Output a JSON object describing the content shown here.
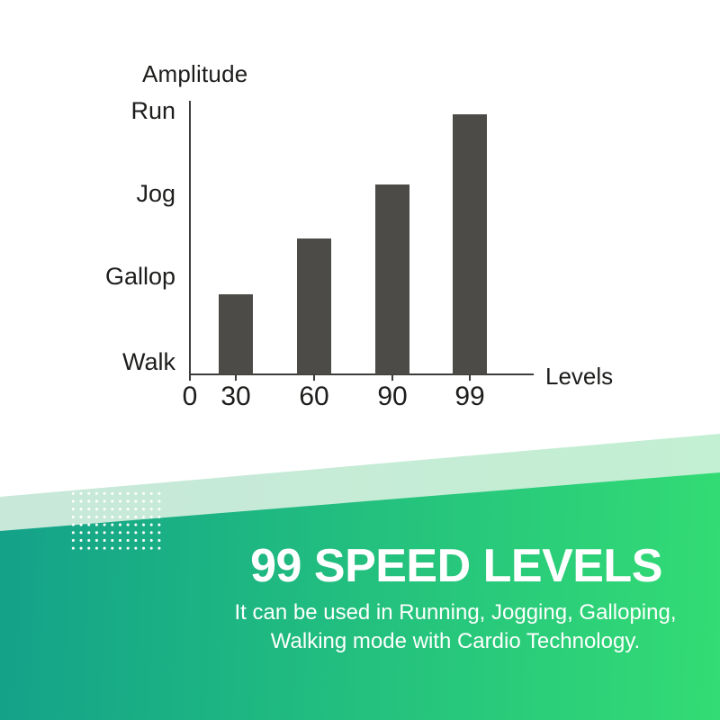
{
  "chart": {
    "title": "Amplitude",
    "x_axis_title": "Levels",
    "y_labels": [
      "Run",
      "Jog",
      "Gallop",
      "Walk"
    ],
    "x_tick_labels": [
      "0",
      "30",
      "60",
      "90",
      "99"
    ]
  },
  "chart_data": {
    "type": "bar",
    "title": "Amplitude",
    "xlabel": "Levels",
    "ylabel": "Amplitude",
    "x_ticks": [
      "0",
      "30",
      "60",
      "90",
      "99"
    ],
    "y_ticks": [
      "Walk",
      "Gallop",
      "Jog",
      "Run"
    ],
    "categories": [
      "30",
      "60",
      "90",
      "99"
    ],
    "values": [
      0.84,
      1.5,
      2.15,
      2.99
    ],
    "value_scale": "level units: Walk=0, Gallop=1, Jog=2, Run=3",
    "bar_color": "#4c4b47",
    "grid": "off",
    "legend": "none"
  },
  "banner": {
    "heading": "99 SPEED LEVELS",
    "body_line1": "It can be used in Running, Jogging, Galloping,",
    "body_line2": "Walking mode with Cardio Technology.",
    "text_color": "#ffffff",
    "gradient_start": "#13a08a",
    "gradient_end": "#33dc74",
    "light_band_start": "#c8e8da",
    "light_band_end": "#c3efd2"
  }
}
